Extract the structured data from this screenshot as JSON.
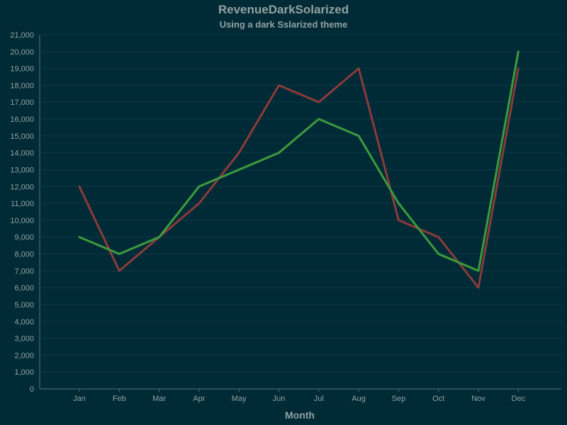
{
  "chart_data": {
    "type": "line",
    "title": "RevenueDarkSolarized",
    "subtitle": "Using a dark Sslarized theme",
    "xlabel": "Month",
    "ylabel": "",
    "categories": [
      "Jan",
      "Feb",
      "Mar",
      "Apr",
      "May",
      "Jun",
      "Jul",
      "Aug",
      "Sep",
      "Oct",
      "Nov",
      "Dec"
    ],
    "ylim": [
      0,
      21000
    ],
    "ytick_step": 1000,
    "grid": true,
    "series": [
      {
        "color": "#8b3a3a",
        "values": [
          12000,
          7000,
          9000,
          11000,
          14000,
          18000,
          17000,
          19000,
          10000,
          9000,
          6000,
          19000
        ]
      },
      {
        "color": "#3d9a3d",
        "values": [
          9000,
          8000,
          9000,
          12000,
          13000,
          14000,
          16000,
          15000,
          11000,
          8000,
          7000,
          20000
        ]
      }
    ]
  }
}
